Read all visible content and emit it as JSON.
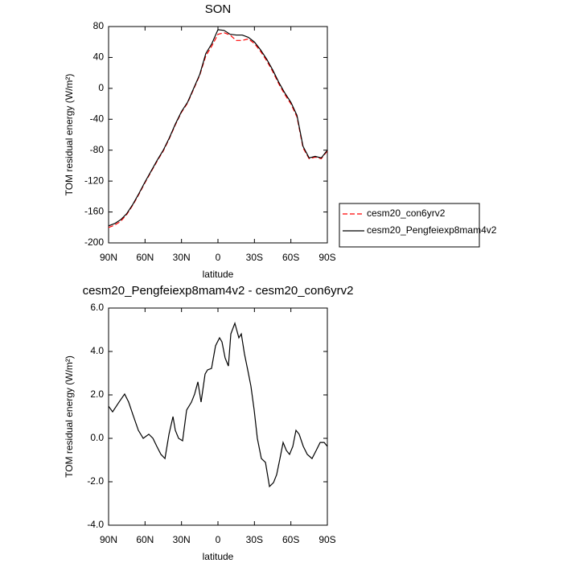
{
  "chart_data": [
    {
      "type": "line",
      "title": "SON",
      "xlabel": "latitude",
      "ylabel": "TOM residual energy (W/m²)",
      "x": [
        90,
        85,
        80,
        75,
        70,
        65,
        60,
        55,
        50,
        45,
        40,
        35,
        30,
        25,
        20,
        15,
        10,
        5,
        0,
        -5,
        -10,
        -15,
        -20,
        -25,
        -30,
        -35,
        -40,
        -45,
        -50,
        -55,
        -60,
        -65,
        -70,
        -75,
        -80,
        -85,
        -90
      ],
      "series": [
        {
          "name": "cesm20_con6yrv2",
          "color": "#ff0000",
          "dashed": true,
          "values": [
            -180,
            -177,
            -172,
            -163,
            -151,
            -137,
            -122,
            -108,
            -94,
            -81,
            -65,
            -47,
            -31,
            -19,
            -1,
            17,
            42,
            55,
            70,
            72,
            69,
            62,
            62,
            64,
            58,
            48,
            36,
            22,
            6,
            -8,
            -20,
            -37,
            -77,
            -91,
            -89,
            -91,
            -81
          ]
        },
        {
          "name": "cesm20_Pengfeiexp8mam4v2",
          "color": "#000000",
          "dashed": false,
          "values": [
            -178,
            -175,
            -170,
            -162,
            -150,
            -136,
            -121,
            -107,
            -93,
            -80,
            -64,
            -46,
            -30,
            -18,
            0,
            18,
            45,
            58,
            76,
            75,
            70,
            69,
            69,
            66,
            60,
            50,
            38,
            24,
            8,
            -6,
            -18,
            -35,
            -75,
            -90,
            -88,
            -90,
            -80
          ]
        }
      ],
      "xlim": [
        90,
        -90
      ],
      "xticks": [
        {
          "value": 90,
          "label": "90N"
        },
        {
          "value": 60,
          "label": "60N"
        },
        {
          "value": 30,
          "label": "30N"
        },
        0,
        {
          "value": -30,
          "label": "30S"
        },
        {
          "value": -60,
          "label": "60S"
        },
        {
          "value": -90,
          "label": "90S"
        }
      ],
      "ylim": [
        -200,
        80
      ],
      "yticks": [
        80,
        40,
        0,
        -40,
        -80,
        -120,
        -160,
        -200
      ],
      "legend": "outside-right"
    },
    {
      "type": "line",
      "title": "cesm20_Pengfeiexp8mam4v2 - cesm20_con6yrv2",
      "xlabel": "latitude",
      "ylabel": "TOM residual energy (W/m²)",
      "x": [
        90,
        86.7,
        81.4,
        76.8,
        73.5,
        70.1,
        65.5,
        61.5,
        56.9,
        53.5,
        50.3,
        46.9,
        43.6,
        40.3,
        37.0,
        35.1,
        32.4,
        29.1,
        25.8,
        21.8,
        19.2,
        16.5,
        13.9,
        10.6,
        8.6,
        5.3,
        2.0,
        -1.3,
        -3.3,
        -5.9,
        -8.6,
        -10.6,
        -13.9,
        -17.2,
        -19.2,
        -21.8,
        -24.5,
        -27.1,
        -29.8,
        -32.4,
        -35.7,
        -39.1,
        -42.4,
        -45.7,
        -48.3,
        -51.0,
        -53.6,
        -56.3,
        -58.9,
        -61.6,
        -64.2,
        -66.8,
        -70.2,
        -73.5,
        -77.4,
        -80.8,
        -84.1,
        -87.4,
        -90
      ],
      "values": [
        1.48,
        1.22,
        1.67,
        2.04,
        1.67,
        1.11,
        0.37,
        0.0,
        0.19,
        0.0,
        -0.37,
        -0.74,
        -0.93,
        0.19,
        1.0,
        0.37,
        0.0,
        -0.11,
        1.3,
        1.67,
        2.04,
        2.6,
        1.67,
        2.96,
        3.15,
        3.22,
        4.26,
        4.63,
        4.44,
        3.7,
        3.33,
        4.81,
        5.3,
        4.63,
        4.81,
        3.89,
        3.15,
        2.41,
        1.3,
        0.0,
        -0.93,
        -1.11,
        -2.22,
        -2.04,
        -1.67,
        -0.93,
        -0.19,
        -0.56,
        -0.74,
        -0.37,
        0.37,
        0.19,
        -0.37,
        -0.74,
        -0.93,
        -0.56,
        -0.19,
        -0.19,
        -0.37
      ],
      "color": "#000000",
      "xlim": [
        90,
        -90
      ],
      "xticks": [
        {
          "value": 90,
          "label": "90N"
        },
        {
          "value": 60,
          "label": "60N"
        },
        {
          "value": 30,
          "label": "30N"
        },
        0,
        {
          "value": -30,
          "label": "30S"
        },
        {
          "value": -60,
          "label": "60S"
        },
        {
          "value": -90,
          "label": "90S"
        }
      ],
      "ylim": [
        -4,
        6
      ],
      "yticks": [
        {
          "value": 6,
          "label": "6.0"
        },
        {
          "value": 4,
          "label": "4.0"
        },
        {
          "value": 2,
          "label": "2.0"
        },
        {
          "value": 0,
          "label": "0.0"
        },
        {
          "value": -2,
          "label": "-2.0"
        },
        {
          "value": -4,
          "label": "-4.0"
        }
      ]
    }
  ]
}
